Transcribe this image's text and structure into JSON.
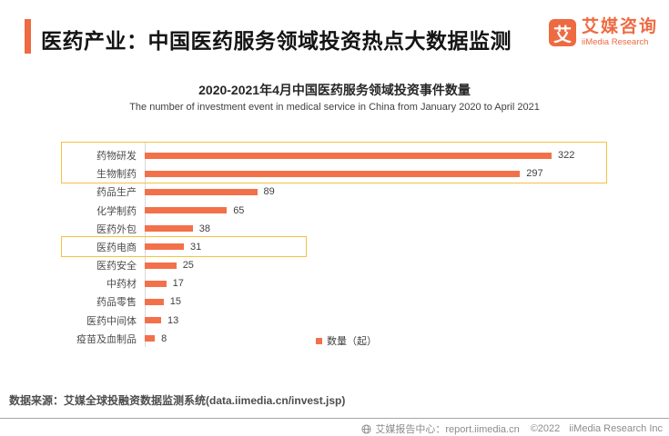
{
  "colors": {
    "accent_orange": "#EE6A41",
    "bar_orange": "#F2714A",
    "highlight_gold": "#F3C243",
    "text_dark": "#141414",
    "text_gray": "#4d4d4d",
    "footer_gray": "#8c8c8c"
  },
  "header": {
    "title": "医药产业：中国医药服务领域投资热点大数据监测",
    "logo": {
      "mark": "艾",
      "name_cn": "艾媒咨询",
      "name_en": "iiMedia Research"
    }
  },
  "chart_data": {
    "type": "bar",
    "orientation": "horizontal",
    "title": "2020-2021年4月中国医药服务领域投资事件数量",
    "subtitle": "The number of investment event in medical service in China from January 2020 to April 2021",
    "categories": [
      "药物研发",
      "生物制药",
      "药品生产",
      "化学制药",
      "医药外包",
      "医药电商",
      "医药安全",
      "中药材",
      "药品零售",
      "医药中间体",
      "疫苗及血制品"
    ],
    "values": [
      322,
      297,
      89,
      65,
      38,
      31,
      25,
      17,
      15,
      13,
      8
    ],
    "series_name": "数量（起）",
    "legend": "数量（起）",
    "legend_position": "bottom-center",
    "xlim": [
      0,
      350
    ],
    "grid": false,
    "bar_color": "#F2714A",
    "highlighted_categories": [
      [
        "药物研发",
        "生物制药"
      ],
      [
        "医药电商"
      ]
    ]
  },
  "source": {
    "text": "数据来源：艾媒全球投融资数据监测系统(data.iimedia.cn/invest.jsp)"
  },
  "footer": {
    "report_center": "艾媒报告中心：report.iimedia.cn",
    "copyright": "©2022",
    "company": "iiMedia Research Inc"
  }
}
